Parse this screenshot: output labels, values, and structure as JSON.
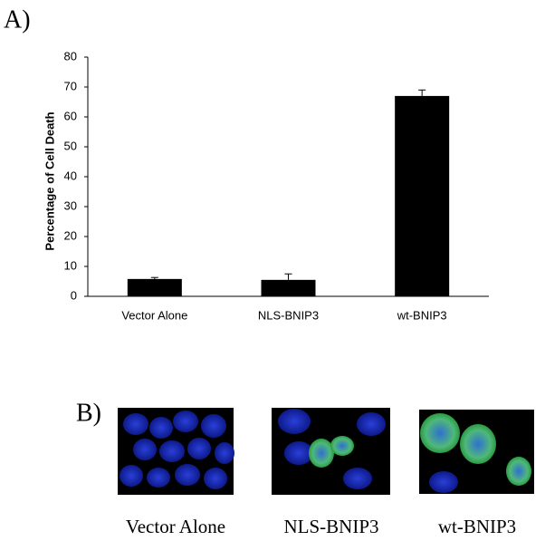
{
  "panel_a": {
    "label": "A)"
  },
  "chart_data": {
    "type": "bar",
    "y_label": "Percentage of Cell Death",
    "categories": [
      "Vector Alone",
      "NLS-BNIP3",
      "wt-BNIP3"
    ],
    "values": [
      5.8,
      5.5,
      67
    ],
    "errors": [
      0.5,
      2,
      2
    ],
    "color": "#000000",
    "ylim": [
      0,
      80
    ],
    "yticks": [
      0,
      10,
      20,
      30,
      40,
      50,
      60,
      70,
      80
    ],
    "grid": false
  },
  "panel_b": {
    "label": "B)",
    "images": [
      {
        "caption": "Vector Alone"
      },
      {
        "caption": "NLS-BNIP3"
      },
      {
        "caption": "wt-BNIP3"
      }
    ]
  }
}
